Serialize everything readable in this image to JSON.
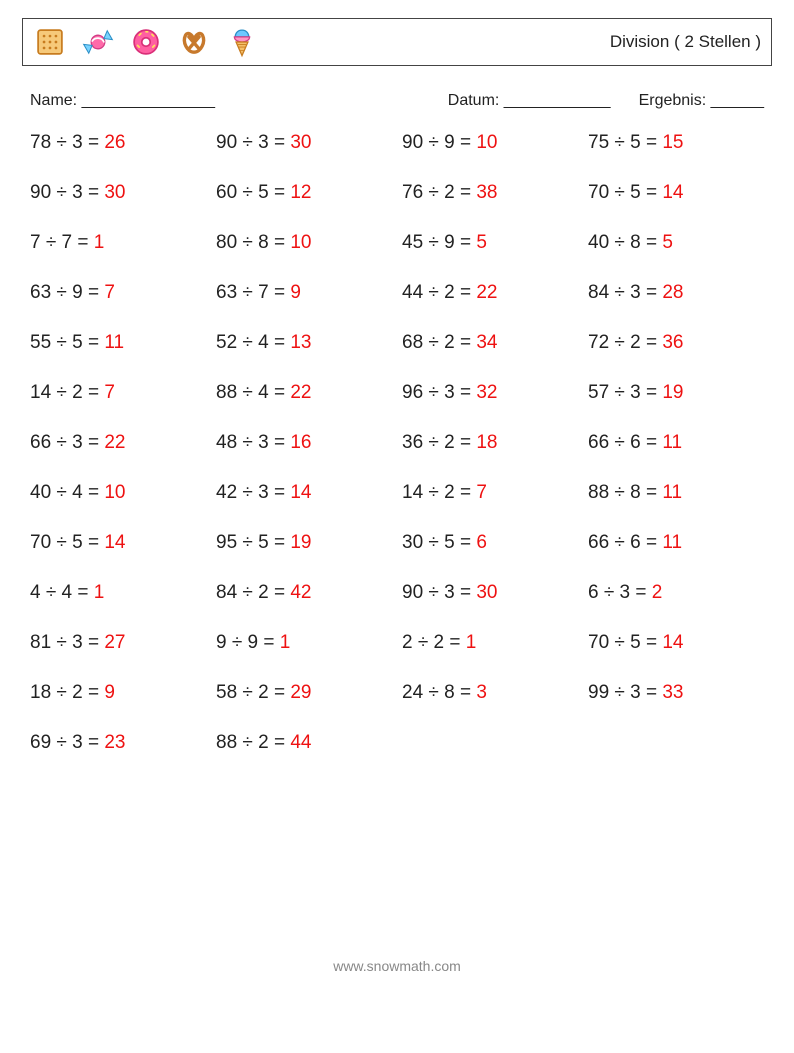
{
  "title": "Division ( 2 Stellen )",
  "labels": {
    "name": "Name: _______________",
    "date": "Datum: ____________",
    "result": "Ergebnis: ______"
  },
  "footer": "www.snowmath.com",
  "answer_color": "#ee1111",
  "text_color": "#222222",
  "columns": 4,
  "problems": [
    {
      "a": 78,
      "b": 3,
      "r": 26
    },
    {
      "a": 90,
      "b": 3,
      "r": 30
    },
    {
      "a": 90,
      "b": 9,
      "r": 10
    },
    {
      "a": 75,
      "b": 5,
      "r": 15
    },
    {
      "a": 90,
      "b": 3,
      "r": 30
    },
    {
      "a": 60,
      "b": 5,
      "r": 12
    },
    {
      "a": 76,
      "b": 2,
      "r": 38
    },
    {
      "a": 70,
      "b": 5,
      "r": 14
    },
    {
      "a": 7,
      "b": 7,
      "r": 1
    },
    {
      "a": 80,
      "b": 8,
      "r": 10
    },
    {
      "a": 45,
      "b": 9,
      "r": 5
    },
    {
      "a": 40,
      "b": 8,
      "r": 5
    },
    {
      "a": 63,
      "b": 9,
      "r": 7
    },
    {
      "a": 63,
      "b": 7,
      "r": 9
    },
    {
      "a": 44,
      "b": 2,
      "r": 22
    },
    {
      "a": 84,
      "b": 3,
      "r": 28
    },
    {
      "a": 55,
      "b": 5,
      "r": 11
    },
    {
      "a": 52,
      "b": 4,
      "r": 13
    },
    {
      "a": 68,
      "b": 2,
      "r": 34
    },
    {
      "a": 72,
      "b": 2,
      "r": 36
    },
    {
      "a": 14,
      "b": 2,
      "r": 7
    },
    {
      "a": 88,
      "b": 4,
      "r": 22
    },
    {
      "a": 96,
      "b": 3,
      "r": 32
    },
    {
      "a": 57,
      "b": 3,
      "r": 19
    },
    {
      "a": 66,
      "b": 3,
      "r": 22
    },
    {
      "a": 48,
      "b": 3,
      "r": 16
    },
    {
      "a": 36,
      "b": 2,
      "r": 18
    },
    {
      "a": 66,
      "b": 6,
      "r": 11
    },
    {
      "a": 40,
      "b": 4,
      "r": 10
    },
    {
      "a": 42,
      "b": 3,
      "r": 14
    },
    {
      "a": 14,
      "b": 2,
      "r": 7
    },
    {
      "a": 88,
      "b": 8,
      "r": 11
    },
    {
      "a": 70,
      "b": 5,
      "r": 14
    },
    {
      "a": 95,
      "b": 5,
      "r": 19
    },
    {
      "a": 30,
      "b": 5,
      "r": 6
    },
    {
      "a": 66,
      "b": 6,
      "r": 11
    },
    {
      "a": 4,
      "b": 4,
      "r": 1
    },
    {
      "a": 84,
      "b": 2,
      "r": 42
    },
    {
      "a": 90,
      "b": 3,
      "r": 30
    },
    {
      "a": 6,
      "b": 3,
      "r": 2
    },
    {
      "a": 81,
      "b": 3,
      "r": 27
    },
    {
      "a": 9,
      "b": 9,
      "r": 1
    },
    {
      "a": 2,
      "b": 2,
      "r": 1
    },
    {
      "a": 70,
      "b": 5,
      "r": 14
    },
    {
      "a": 18,
      "b": 2,
      "r": 9
    },
    {
      "a": 58,
      "b": 2,
      "r": 29
    },
    {
      "a": 24,
      "b": 8,
      "r": 3
    },
    {
      "a": 99,
      "b": 3,
      "r": 33
    },
    {
      "a": 69,
      "b": 3,
      "r": 23
    },
    {
      "a": 88,
      "b": 2,
      "r": 44
    }
  ]
}
